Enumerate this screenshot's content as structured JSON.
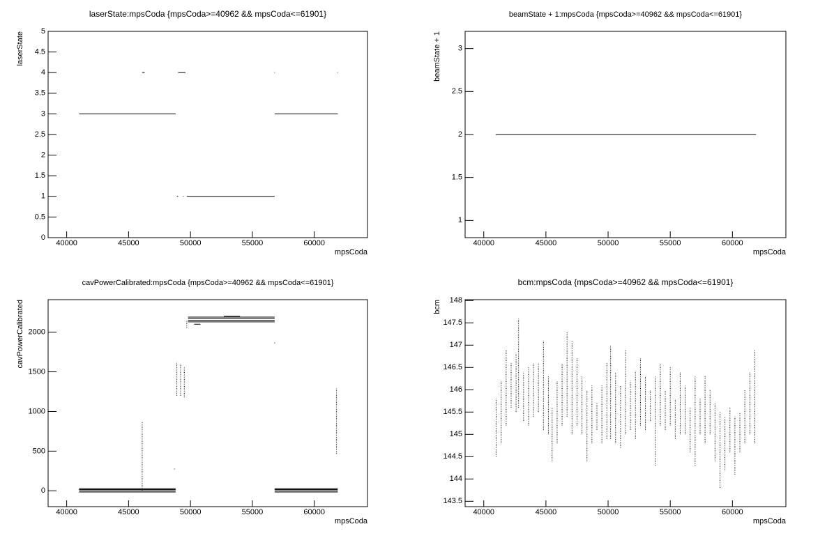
{
  "chart_data": [
    {
      "type": "line",
      "title": "laserState:mpsCoda {mpsCoda>=40962 && mpsCoda<=61901}",
      "x_label": "mpsCoda",
      "y_label": "laserState",
      "xlim": [
        38500,
        64300
      ],
      "xticks": [
        40000,
        45000,
        50000,
        55000,
        60000
      ],
      "ylim": [
        0,
        5
      ],
      "yticks": [
        0,
        0.5,
        1,
        1.5,
        2,
        2.5,
        3,
        3.5,
        4,
        4.5,
        5
      ],
      "series": [
        {
          "color": "#000000",
          "style": "solid",
          "x": [
            41000,
            48800,
            null,
            56800,
            61900,
            null,
            46100,
            46300,
            null,
            49000,
            49600,
            null,
            56780,
            56820,
            null,
            61880,
            61920,
            null,
            48900,
            49000,
            null,
            49400,
            49450,
            null,
            49700,
            56800
          ],
          "values": [
            3,
            3,
            null,
            3,
            3,
            null,
            4,
            4,
            null,
            4,
            4,
            null,
            4,
            4,
            null,
            4,
            4,
            null,
            1,
            1,
            null,
            1,
            1,
            null,
            1,
            1
          ]
        }
      ]
    },
    {
      "type": "line",
      "title": "beamState + 1:mpsCoda {mpsCoda>=40962 && mpsCoda<=61901}",
      "x_label": "mpsCoda",
      "y_label": "beamState + 1",
      "xlim": [
        38500,
        64300
      ],
      "xticks": [
        40000,
        45000,
        50000,
        55000,
        60000
      ],
      "ylim": [
        0.8,
        3.2
      ],
      "yticks": [
        1,
        1.5,
        2,
        2.5,
        3
      ],
      "series": [
        {
          "color": "#000000",
          "style": "solid",
          "x": [
            40962,
            61901
          ],
          "values": [
            2,
            2
          ]
        }
      ]
    },
    {
      "type": "line",
      "title": "cavPowerCalibrated:mpsCoda {mpsCoda>=40962 && mpsCoda<=61901}",
      "x_label": "mpsCoda",
      "y_label": "cavPowerCalibrated",
      "xlim": [
        38500,
        64300
      ],
      "xticks": [
        40000,
        45000,
        50000,
        55000,
        60000
      ],
      "ylim": [
        -200,
        2410
      ],
      "yticks": [
        0,
        500,
        1000,
        1500,
        2000
      ],
      "series": [
        {
          "color": "#000000",
          "style": "solid",
          "x": [
            41000,
            48800,
            null,
            41000,
            48800,
            null,
            41000,
            48800,
            null,
            41000,
            48800,
            null,
            56800,
            61900,
            null,
            56800,
            61900,
            null,
            56800,
            61900,
            null,
            56800,
            61900,
            null,
            49800,
            56800,
            null,
            49800,
            56800,
            null,
            49800,
            56800,
            null,
            49800,
            56800,
            null,
            52700,
            54000,
            null,
            50300,
            50800
          ],
          "values": [
            -15,
            -15,
            null,
            0,
            0,
            null,
            15,
            15,
            null,
            30,
            30,
            null,
            -15,
            -15,
            null,
            0,
            0,
            null,
            15,
            15,
            null,
            30,
            30,
            null,
            2130,
            2130,
            null,
            2150,
            2150,
            null,
            2170,
            2170,
            null,
            2190,
            2190,
            null,
            2200,
            2200,
            null,
            2100,
            2100
          ]
        },
        {
          "color": "#000000",
          "style": "dotted",
          "x": [
            46100,
            46100,
            null,
            48900,
            48900,
            null,
            49200,
            49200,
            null,
            49500,
            49500,
            null,
            49700,
            49700,
            null,
            61800,
            61800,
            null,
            56800,
            56800,
            null,
            48700,
            48700
          ],
          "values": [
            0,
            870,
            null,
            1200,
            1620,
            null,
            1200,
            1600,
            null,
            1180,
            1560,
            null,
            2060,
            2150,
            null,
            470,
            1290,
            null,
            1860,
            1880,
            null,
            270,
            285
          ]
        }
      ]
    },
    {
      "type": "line",
      "title": "bcm:mpsCoda {mpsCoda>=40962 && mpsCoda<=61901}",
      "x_label": "mpsCoda",
      "y_label": "bcm",
      "xlim": [
        38500,
        64300
      ],
      "xticks": [
        40000,
        45000,
        50000,
        55000,
        60000
      ],
      "ylim": [
        143.38,
        148.02
      ],
      "yticks": [
        143.5,
        144,
        144.5,
        145,
        145.5,
        146,
        146.5,
        147,
        147.5,
        148
      ],
      "series": [
        {
          "color": "#000000",
          "style": "dotted",
          "x": [
            41000,
            41000,
            null,
            41400,
            41400,
            null,
            41800,
            41800,
            null,
            42200,
            42200,
            null,
            42600,
            42600,
            null,
            42800,
            42800,
            null,
            43200,
            43200,
            null,
            43600,
            43600,
            null,
            44000,
            44000,
            null,
            44400,
            44400,
            null,
            44800,
            44800,
            null,
            45200,
            45200,
            null,
            45500,
            45500,
            null,
            45900,
            45900,
            null,
            46300,
            46300,
            null,
            46700,
            46700,
            null,
            47100,
            47100,
            null,
            47500,
            47500,
            null,
            47900,
            47900,
            null,
            48300,
            48300,
            null,
            48700,
            48700,
            null,
            49100,
            49100,
            null,
            49500,
            49500,
            null,
            49900,
            49900,
            null,
            50200,
            50200,
            null,
            50600,
            50600,
            null,
            51000,
            51000,
            null,
            51400,
            51400,
            null,
            51800,
            51800,
            null,
            52200,
            52200,
            null,
            52600,
            52600,
            null,
            53000,
            53000,
            null,
            53400,
            53400,
            null,
            53800,
            53800,
            null,
            54200,
            54200,
            null,
            54600,
            54600,
            null,
            55000,
            55000,
            null,
            55400,
            55400,
            null,
            55800,
            55800,
            null,
            56200,
            56200,
            null,
            56600,
            56600,
            null,
            57000,
            57000,
            null,
            57400,
            57400,
            null,
            57800,
            57800,
            null,
            58200,
            58200,
            null,
            58600,
            58600,
            null,
            59000,
            59000,
            null,
            59400,
            59400,
            null,
            59800,
            59800,
            null,
            60200,
            60200,
            null,
            60600,
            60600,
            null,
            61000,
            61000,
            null,
            61400,
            61400,
            null,
            61800,
            61800
          ],
          "values": [
            144.5,
            145.8,
            null,
            144.8,
            146.2,
            null,
            145.2,
            146.9,
            null,
            145.6,
            146.6,
            null,
            145.5,
            146.8,
            null,
            145.6,
            147.6,
            null,
            145.3,
            146.4,
            null,
            145.2,
            146.5,
            null,
            145.4,
            146.6,
            null,
            145.5,
            146.6,
            null,
            145.1,
            147.1,
            null,
            145.0,
            146.3,
            null,
            144.4,
            145.6,
            null,
            144.8,
            146.2,
            null,
            145.2,
            146.6,
            null,
            145.4,
            147.3,
            null,
            145.0,
            147.1,
            null,
            145.2,
            146.7,
            null,
            145.0,
            146.3,
            null,
            144.4,
            146.0,
            null,
            144.8,
            146.1,
            null,
            145.1,
            145.7,
            null,
            144.8,
            146.1,
            null,
            144.9,
            146.6,
            null,
            144.9,
            147.0,
            null,
            144.8,
            146.4,
            null,
            144.7,
            146.1,
            null,
            145.0,
            146.9,
            null,
            145.1,
            146.2,
            null,
            144.9,
            146.4,
            null,
            145.2,
            146.7,
            null,
            145.1,
            146.3,
            null,
            145.3,
            146.0,
            null,
            144.3,
            146.3,
            null,
            145.2,
            146.6,
            null,
            145.1,
            146.0,
            null,
            145.2,
            146.5,
            null,
            144.9,
            145.8,
            null,
            145.0,
            146.4,
            null,
            145.0,
            146.1,
            null,
            144.6,
            145.6,
            null,
            144.3,
            146.3,
            null,
            145.0,
            145.8,
            null,
            144.8,
            146.3,
            null,
            145.0,
            146.0,
            null,
            144.4,
            145.7,
            null,
            143.8,
            145.5,
            null,
            144.2,
            145.4,
            null,
            144.6,
            145.6,
            null,
            144.1,
            145.4,
            null,
            144.6,
            145.5,
            null,
            144.8,
            146.0,
            null,
            145.0,
            146.4,
            null,
            144.8,
            146.9
          ]
        }
      ]
    }
  ]
}
